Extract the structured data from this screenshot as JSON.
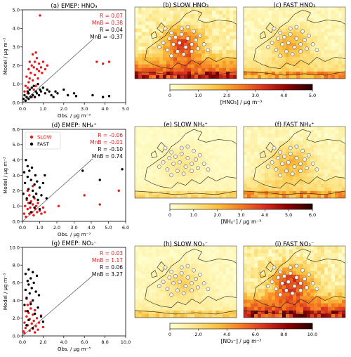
{
  "chart_data": [
    {
      "type": "scatter",
      "panel": "a",
      "title": "(a) EMEP: HNO₃",
      "xlabel": "Obs. / µg m⁻³",
      "ylabel": "Model / µg m⁻³",
      "xlim": [
        0,
        5
      ],
      "ylim": [
        0,
        5
      ],
      "xticks": [
        "0.0",
        "1.0",
        "2.0",
        "3.0",
        "4.0",
        "5.0"
      ],
      "yticks": [
        "0.0",
        "1.0",
        "2.0",
        "3.0",
        "4.0",
        "5.0"
      ],
      "stats": [
        {
          "text": "R = 0.07",
          "color": "#e8191a"
        },
        {
          "text": "MnB = 0.38",
          "color": "#e8191a"
        },
        {
          "text": "R = 0.04",
          "color": "#000000"
        },
        {
          "text": "MnB = -0.37",
          "color": "#000000"
        }
      ],
      "series": [
        {
          "name": "SLOW",
          "color": "#e8191a",
          "points": [
            [
              0.1,
              0.6
            ],
            [
              0.15,
              0.9
            ],
            [
              0.2,
              1.4
            ],
            [
              0.25,
              0.5
            ],
            [
              0.3,
              1.1
            ],
            [
              0.3,
              1.8
            ],
            [
              0.35,
              2.2
            ],
            [
              0.4,
              1.6
            ],
            [
              0.45,
              2.0
            ],
            [
              0.5,
              1.2
            ],
            [
              0.5,
              2.6
            ],
            [
              0.55,
              1.9
            ],
            [
              0.6,
              1.5
            ],
            [
              0.6,
              2.2
            ],
            [
              0.65,
              0.9
            ],
            [
              0.7,
              1.8
            ],
            [
              0.7,
              2.4
            ],
            [
              0.75,
              1.3
            ],
            [
              0.8,
              1.7
            ],
            [
              0.8,
              2.1
            ],
            [
              0.85,
              4.7
            ],
            [
              0.9,
              1.9
            ],
            [
              0.95,
              1.6
            ],
            [
              1.0,
              2.2
            ],
            [
              1.1,
              1.8
            ],
            [
              1.2,
              2.0
            ],
            [
              0.45,
              0.3
            ],
            [
              0.55,
              0.7
            ],
            [
              0.35,
              1.3
            ],
            [
              0.25,
              0.8
            ],
            [
              0.65,
              2.7
            ],
            [
              3.6,
              2.2
            ],
            [
              3.9,
              2.1
            ],
            [
              4.2,
              2.2
            ]
          ]
        },
        {
          "name": "FAST",
          "color": "#000000",
          "points": [
            [
              0.05,
              0.2
            ],
            [
              0.1,
              0.4
            ],
            [
              0.15,
              0.1
            ],
            [
              0.2,
              0.3
            ],
            [
              0.25,
              0.6
            ],
            [
              0.3,
              0.2
            ],
            [
              0.3,
              0.5
            ],
            [
              0.35,
              0.7
            ],
            [
              0.4,
              0.3
            ],
            [
              0.45,
              0.8
            ],
            [
              0.5,
              0.4
            ],
            [
              0.55,
              0.9
            ],
            [
              0.6,
              0.3
            ],
            [
              0.65,
              0.6
            ],
            [
              0.7,
              0.5
            ],
            [
              0.75,
              1.0
            ],
            [
              0.8,
              0.4
            ],
            [
              0.85,
              0.7
            ],
            [
              0.9,
              0.6
            ],
            [
              1.0,
              0.8
            ],
            [
              1.1,
              0.5
            ],
            [
              1.2,
              0.7
            ],
            [
              1.3,
              0.6
            ],
            [
              1.4,
              0.4
            ],
            [
              1.5,
              0.3
            ],
            [
              1.6,
              0.6
            ],
            [
              1.7,
              0.5
            ],
            [
              2.0,
              0.7
            ],
            [
              2.2,
              0.4
            ],
            [
              2.5,
              0.5
            ],
            [
              2.6,
              0.35
            ],
            [
              3.4,
              0.4
            ],
            [
              3.9,
              0.3
            ],
            [
              4.2,
              0.35
            ]
          ]
        }
      ]
    },
    {
      "type": "scatter",
      "panel": "d",
      "title": "(d) EMEP: NH₄⁺",
      "xlabel": "Obs. / µg m⁻³",
      "ylabel": "Model / µg m⁻³",
      "xlim": [
        0,
        6
      ],
      "ylim": [
        0,
        6
      ],
      "xticks": [
        "0.0",
        "1.0",
        "2.0",
        "3.0",
        "4.0",
        "5.0",
        "6.0"
      ],
      "yticks": [
        "0.0",
        "1.0",
        "2.0",
        "3.0",
        "4.0",
        "5.0",
        "6.0"
      ],
      "legend": [
        {
          "label": "SLOW",
          "color": "#e8191a"
        },
        {
          "label": "FAST",
          "color": "#000000"
        }
      ],
      "stats": [
        {
          "text": "R = -0.06",
          "color": "#e8191a"
        },
        {
          "text": "MnB = -0.01",
          "color": "#e8191a"
        },
        {
          "text": "R = -0.10",
          "color": "#000000"
        },
        {
          "text": "MnB = 0.74",
          "color": "#000000"
        }
      ],
      "series": [
        {
          "name": "SLOW",
          "color": "#e8191a",
          "points": [
            [
              0.1,
              0.5
            ],
            [
              0.15,
              1.0
            ],
            [
              0.2,
              0.3
            ],
            [
              0.25,
              1.4
            ],
            [
              0.3,
              0.8
            ],
            [
              0.35,
              1.2
            ],
            [
              0.4,
              0.5
            ],
            [
              0.4,
              1.7
            ],
            [
              0.45,
              0.9
            ],
            [
              0.5,
              1.3
            ],
            [
              0.55,
              0.6
            ],
            [
              0.6,
              1.1
            ],
            [
              0.65,
              0.4
            ],
            [
              0.7,
              1.5
            ],
            [
              0.75,
              0.8
            ],
            [
              0.8,
              1.0
            ],
            [
              0.85,
              0.6
            ],
            [
              0.9,
              1.2
            ],
            [
              1.0,
              0.7
            ],
            [
              1.1,
              0.5
            ],
            [
              1.2,
              0.9
            ],
            [
              1.3,
              0.6
            ],
            [
              0.3,
              2.0
            ],
            [
              0.6,
              2.3
            ],
            [
              2.1,
              1.0
            ],
            [
              3.6,
              1.7
            ],
            [
              4.5,
              1.1
            ],
            [
              5.6,
              2.0
            ]
          ]
        },
        {
          "name": "FAST",
          "color": "#000000",
          "points": [
            [
              0.05,
              1.8
            ],
            [
              0.1,
              3.2
            ],
            [
              0.15,
              2.5
            ],
            [
              0.2,
              4.0
            ],
            [
              0.25,
              1.5
            ],
            [
              0.3,
              2.9
            ],
            [
              0.3,
              3.6
            ],
            [
              0.35,
              2.1
            ],
            [
              0.4,
              3.3
            ],
            [
              0.45,
              1.2
            ],
            [
              0.5,
              2.7
            ],
            [
              0.55,
              3.5
            ],
            [
              0.6,
              2.0
            ],
            [
              0.65,
              1.6
            ],
            [
              0.7,
              2.4
            ],
            [
              0.75,
              3.0
            ],
            [
              0.8,
              1.8
            ],
            [
              0.85,
              2.6
            ],
            [
              0.9,
              1.4
            ],
            [
              1.0,
              2.2
            ],
            [
              1.1,
              1.7
            ],
            [
              1.2,
              2.5
            ],
            [
              1.3,
              3.0
            ],
            [
              1.4,
              1.5
            ],
            [
              0.5,
              0.6
            ],
            [
              0.7,
              0.9
            ],
            [
              1.0,
              0.8
            ],
            [
              3.5,
              3.3
            ],
            [
              4.5,
              2.7
            ],
            [
              5.8,
              3.4
            ]
          ]
        }
      ]
    },
    {
      "type": "scatter",
      "panel": "g",
      "title": "(g) EMEP: NO₃⁻",
      "xlabel": "Obs. / µg m⁻³",
      "ylabel": "Model / µg m⁻³",
      "xlim": [
        0,
        10
      ],
      "ylim": [
        0,
        10
      ],
      "xticks": [
        "0.0",
        "2.0",
        "4.0",
        "6.0",
        "8.0",
        "10.0"
      ],
      "yticks": [
        "0.0",
        "2.0",
        "4.0",
        "6.0",
        "8.0",
        "10.0"
      ],
      "stats": [
        {
          "text": "R = 0.03",
          "color": "#e8191a"
        },
        {
          "text": "MnB = 1.17",
          "color": "#e8191a"
        },
        {
          "text": "R = 0.06",
          "color": "#000000"
        },
        {
          "text": "MnB = 3.27",
          "color": "#000000"
        }
      ],
      "series": [
        {
          "name": "SLOW",
          "color": "#e8191a",
          "points": [
            [
              0.1,
              0.5
            ],
            [
              0.2,
              1.5
            ],
            [
              0.3,
              2.8
            ],
            [
              0.3,
              0.9
            ],
            [
              0.4,
              2.2
            ],
            [
              0.5,
              3.5
            ],
            [
              0.5,
              1.2
            ],
            [
              0.6,
              2.6
            ],
            [
              0.7,
              0.6
            ],
            [
              0.7,
              1.9
            ],
            [
              0.8,
              3.1
            ],
            [
              0.9,
              1.4
            ],
            [
              1.0,
              2.4
            ],
            [
              1.0,
              0.8
            ],
            [
              1.1,
              1.7
            ],
            [
              1.2,
              2.9
            ],
            [
              1.3,
              1.1
            ],
            [
              1.4,
              2.0
            ],
            [
              1.5,
              0.7
            ],
            [
              1.6,
              1.5
            ],
            [
              1.8,
              2.3
            ],
            [
              2.0,
              1.0
            ],
            [
              0.4,
              4.2
            ],
            [
              0.8,
              3.8
            ],
            [
              0.2,
              0.3
            ],
            [
              1.2,
              0.4
            ]
          ]
        },
        {
          "name": "FAST",
          "color": "#000000",
          "points": [
            [
              0.2,
              3.5
            ],
            [
              0.3,
              5.2
            ],
            [
              0.3,
              7.0
            ],
            [
              0.4,
              4.3
            ],
            [
              0.5,
              6.2
            ],
            [
              0.5,
              2.8
            ],
            [
              0.6,
              5.8
            ],
            [
              0.6,
              7.5
            ],
            [
              0.7,
              4.8
            ],
            [
              0.8,
              6.5
            ],
            [
              0.8,
              3.6
            ],
            [
              0.9,
              5.4
            ],
            [
              1.0,
              7.2
            ],
            [
              1.0,
              4.0
            ],
            [
              1.1,
              6.0
            ],
            [
              1.2,
              2.5
            ],
            [
              1.3,
              5.0
            ],
            [
              1.4,
              6.8
            ],
            [
              1.5,
              3.2
            ],
            [
              1.6,
              4.6
            ],
            [
              1.8,
              2.2
            ],
            [
              2.0,
              1.6
            ],
            [
              0.4,
              1.2
            ],
            [
              0.6,
              1.8
            ],
            [
              1.0,
              0.9
            ]
          ]
        }
      ]
    }
  ],
  "maps": [
    {
      "panel": "b",
      "title": "(b) SLOW HNO₃",
      "palette_key": "hno3",
      "intensity": 0.75,
      "hot": 0.9
    },
    {
      "panel": "c",
      "title": "(c) FAST HNO₃",
      "palette_key": "hno3",
      "intensity": 0.45,
      "hot": 0.55
    },
    {
      "panel": "e",
      "title": "(e) SLOW NH₄⁺",
      "palette_key": "nh4",
      "intensity": 0.2,
      "hot": 0.3
    },
    {
      "panel": "f",
      "title": "(f) FAST NH₄⁺",
      "palette_key": "nh4",
      "intensity": 0.45,
      "hot": 0.55
    },
    {
      "panel": "h",
      "title": "(h) SLOW NO₃⁻",
      "palette_key": "no3",
      "intensity": 0.3,
      "hot": 0.35
    },
    {
      "panel": "i",
      "title": "(i) FAST NO₃⁻",
      "palette_key": "no3",
      "intensity": 0.8,
      "hot": 0.95
    }
  ],
  "colorbars": [
    {
      "key": "hno3",
      "label": "[HNO₃] / µg m⁻³",
      "ticks": [
        "0",
        "1.0",
        "2.0",
        "3.0",
        "4.0",
        "5.0"
      ],
      "range": [
        0,
        5
      ]
    },
    {
      "key": "nh4",
      "label": "[NH₄⁺] / µg m⁻³",
      "ticks": [
        "0",
        "1.0",
        "2.0",
        "3.0",
        "4.0",
        "5.0",
        "6.0"
      ],
      "range": [
        0,
        6
      ]
    },
    {
      "key": "no3",
      "label": "[NO₃⁻] / µg m⁻³",
      "ticks": [
        "0",
        "2.0",
        "4.0",
        "6.0",
        "8.0",
        "10.0"
      ],
      "range": [
        0,
        10
      ]
    }
  ],
  "colors": {
    "slow": "#e8191a",
    "fast": "#000000",
    "cmap": [
      "#ffffd0",
      "#fde68a",
      "#fbbf3c",
      "#f47b20",
      "#d7301f",
      "#8c0000",
      "#2a0000"
    ]
  }
}
